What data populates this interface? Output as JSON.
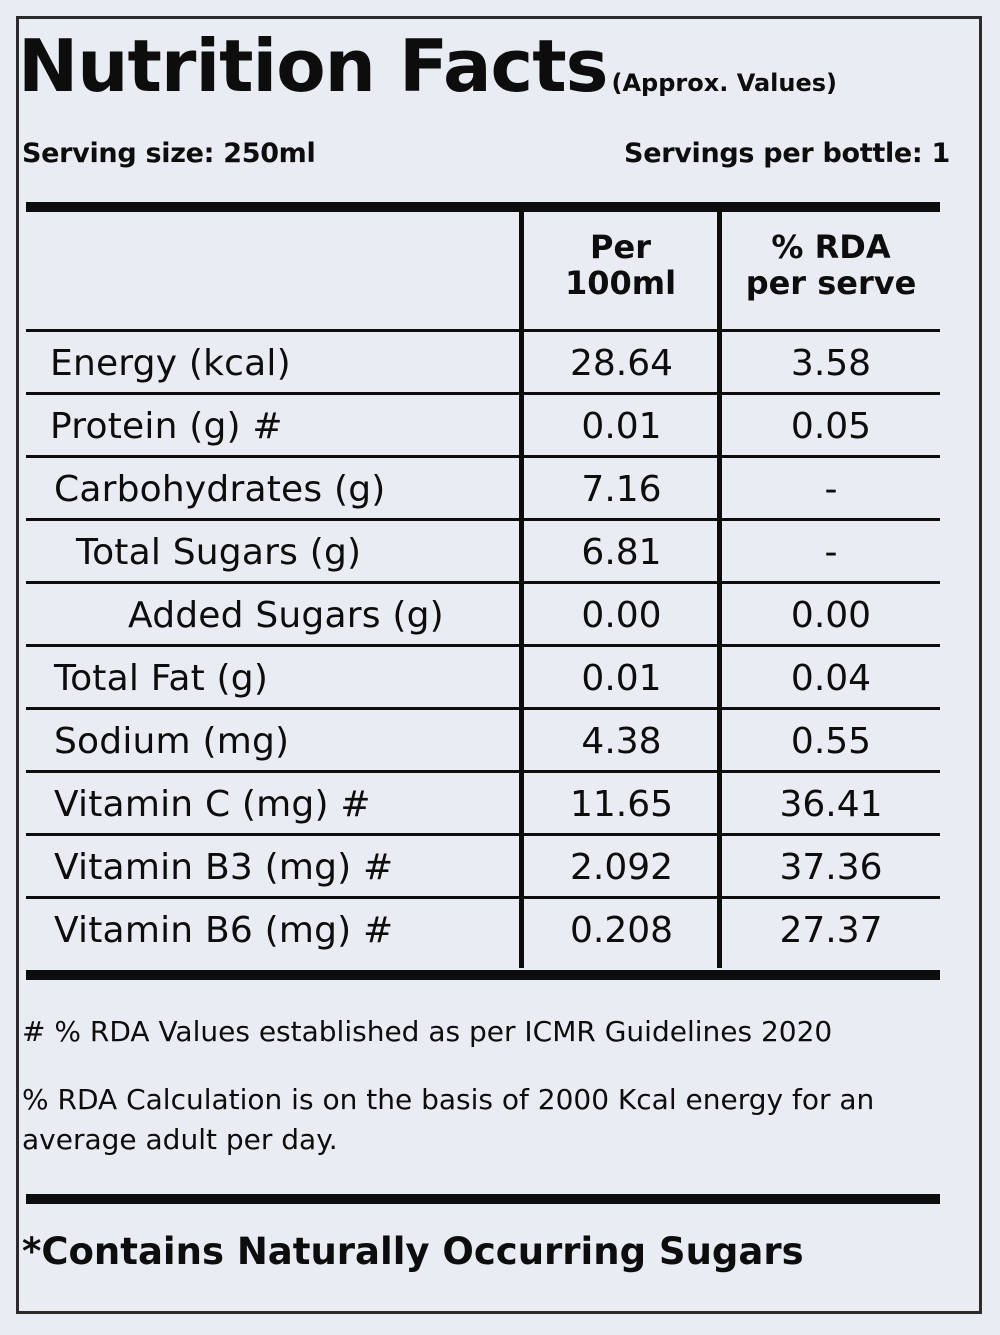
{
  "header": {
    "title": "Nutrition Facts",
    "subtitle": "(Approx. Values)",
    "serving_size": "Serving size: 250ml",
    "servings_per_bottle": "Servings per bottle: 1"
  },
  "table": {
    "col_per_100ml": [
      "Per",
      "100ml"
    ],
    "col_rda": [
      "% RDA",
      "per serve"
    ],
    "rows": [
      {
        "name": "Energy (kcal)",
        "per100": "28.64",
        "rda": "3.58",
        "indent": 0
      },
      {
        "name": "Protein (g) #",
        "per100": "0.01",
        "rda": "0.05",
        "indent": 0
      },
      {
        "name": "Carbohydrates (g)",
        "per100": "7.16",
        "rda": "-",
        "indent": 1
      },
      {
        "name": "Total Sugars (g)",
        "per100": "6.81",
        "rda": "-",
        "indent": 2
      },
      {
        "name": "Added Sugars (g)",
        "per100": "0.00",
        "rda": "0.00",
        "indent": 3
      },
      {
        "name": "Total Fat (g)",
        "per100": "0.01",
        "rda": "0.04",
        "indent": 1
      },
      {
        "name": "Sodium (mg)",
        "per100": "4.38",
        "rda": "0.55",
        "indent": 1
      },
      {
        "name": "Vitamin C (mg) #",
        "per100": "11.65",
        "rda": "36.41",
        "indent": 1
      },
      {
        "name": "Vitamin B3 (mg) #",
        "per100": "2.092",
        "rda": "37.36",
        "indent": 1
      },
      {
        "name": "Vitamin B6 (mg) #",
        "per100": "0.208",
        "rda": "27.37",
        "indent": 1
      }
    ]
  },
  "notes": {
    "icmr": "# % RDA Values established as per ICMR Guidelines 2020",
    "calc": "% RDA Calculation is on the basis of 2000 Kcal energy for an average adult per day."
  },
  "footer": {
    "sugars_note": "*Contains Naturally Occurring Sugars"
  }
}
